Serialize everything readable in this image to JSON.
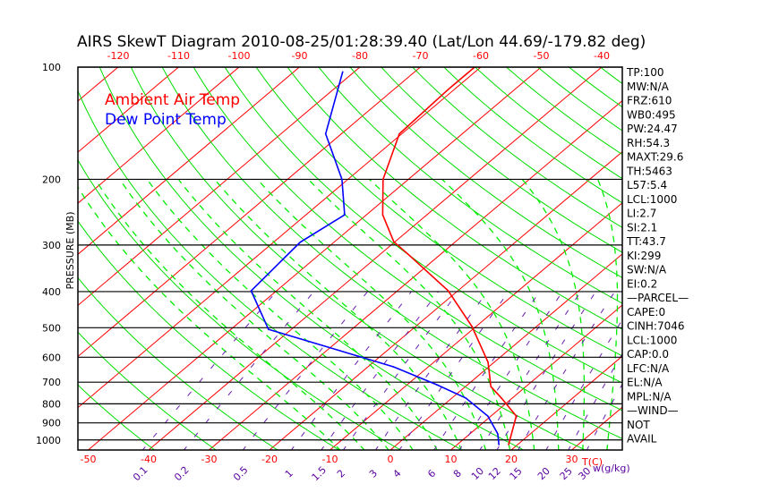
{
  "chart_data": {
    "type": "line",
    "title": "AIRS SkewT Diagram 2010-08-25/01:28:39.40 (Lat/Lon 44.69/-179.82 deg)",
    "ylabel": "PRESSURE (MB)",
    "xlabel": "T(C)",
    "mixing_ratio_label": "w(g/kg)",
    "ylim": [
      1064,
      100
    ],
    "pressure_ticks": [
      100,
      200,
      300,
      400,
      500,
      600,
      700,
      800,
      900,
      1000
    ],
    "bottom_temp_ticks": [
      -50,
      -40,
      -30,
      -20,
      -10,
      0,
      10,
      20,
      30
    ],
    "top_temp_ticks": [
      -120,
      -110,
      -100,
      -90,
      -80,
      -70,
      -60,
      -50,
      -40
    ],
    "mixing_ratio_ticks": [
      "0.1",
      "0.2",
      "0.5",
      "1",
      "1.5",
      "2",
      "3",
      "4",
      "6",
      "8",
      "10",
      "12",
      "15",
      "20",
      "25",
      "30"
    ],
    "legend": [
      {
        "name": "Ambient Air Temp",
        "color": "#ff0000"
      },
      {
        "name": "Dew Point Temp",
        "color": "#0000ff"
      }
    ],
    "series": [
      {
        "name": "Ambient Air Temp",
        "color": "#ff0000",
        "points": [
          [
            1029,
            18.5
          ],
          [
            863,
            14.2
          ],
          [
            772,
            8.2
          ],
          [
            719,
            4.2
          ],
          [
            619,
            -1.0
          ],
          [
            496,
            -10.7
          ],
          [
            398,
            -21.6
          ],
          [
            316,
            -35.7
          ],
          [
            294,
            -40.2
          ],
          [
            249,
            -47.3
          ],
          [
            200,
            -54.2
          ],
          [
            151,
            -60.4
          ],
          [
            115,
            -61.0
          ],
          [
            100,
            -61.0
          ]
        ]
      },
      {
        "name": "Dew Point Temp",
        "color": "#0000ff",
        "points": [
          [
            1029,
            16.9
          ],
          [
            963,
            14.6
          ],
          [
            863,
            9.5
          ],
          [
            772,
            2.3
          ],
          [
            711,
            -5.1
          ],
          [
            637,
            -15.7
          ],
          [
            596,
            -23.7
          ],
          [
            505,
            -43.8
          ],
          [
            398,
            -54.2
          ],
          [
            295,
            -55.6
          ],
          [
            249,
            -53.6
          ],
          [
            200,
            -61.0
          ],
          [
            151,
            -72.6
          ],
          [
            103,
            -81.9
          ]
        ]
      }
    ],
    "grid": true
  },
  "indices": [
    "TP:100",
    "MW:N/A",
    "FRZ:610",
    "WB0:495",
    "PW:24.47",
    "RH:54.3",
    "MAXT:29.6",
    "TH:5463",
    "L57:5.4",
    "LCL:1000",
    "LI:2.7",
    "SI:2.1",
    "TT:43.7",
    "KI:299",
    "SW:N/A",
    "EI:0.2",
    "—PARCEL—",
    "CAPE:0",
    "CINH:7046",
    "LCL:1000",
    "CAP:0.0",
    "LFC:N/A",
    "EL:N/A",
    "MPL:N/A",
    "—WIND—",
    "NOT",
    "AVAIL"
  ],
  "colors": {
    "isotherm": "#ff0000",
    "dry_adiabat": "#00dd00",
    "moist_adiabat": "#00ee00",
    "mixing_ratio": "#6a1fb0",
    "temp": "#ff0000",
    "dewpoint": "#0000ff"
  }
}
